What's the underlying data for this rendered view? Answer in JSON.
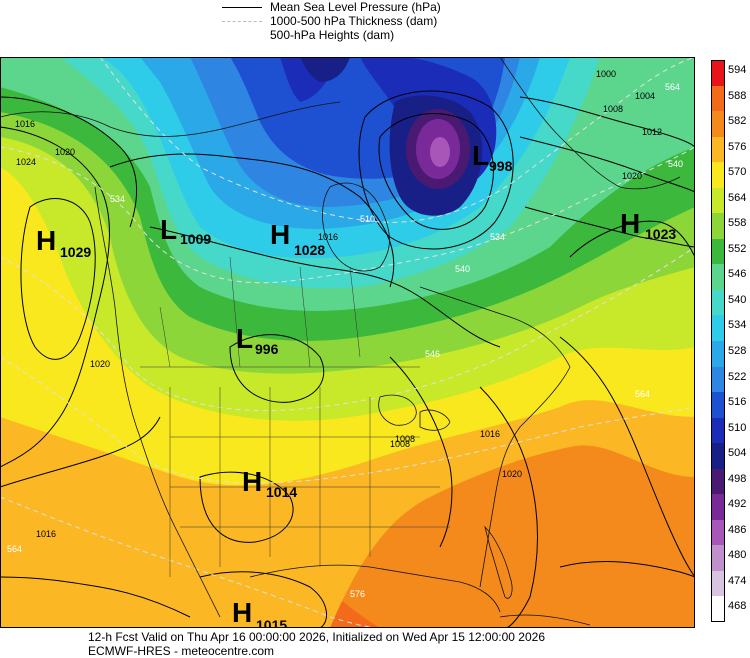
{
  "legend": {
    "mslp": "Mean Sea Level Pressure (hPa)",
    "thickness": "1000-500 hPa Thickness (dam)",
    "heights": "500-hPa Heights (dam)"
  },
  "colorbar": {
    "labels": [
      "594",
      "588",
      "582",
      "576",
      "570",
      "564",
      "558",
      "552",
      "546",
      "540",
      "534",
      "528",
      "522",
      "516",
      "510",
      "504",
      "498",
      "492",
      "486",
      "480",
      "474",
      "468"
    ],
    "colors": [
      "#e8141a",
      "#f26a1a",
      "#f58a1c",
      "#fbb824",
      "#fae81e",
      "#c8e82a",
      "#8cd63a",
      "#3cb83c",
      "#5bd68c",
      "#46d8c8",
      "#2ecce8",
      "#2aa8e8",
      "#2e86e2",
      "#1e50d2",
      "#1a2cb8",
      "#182088",
      "#4a1a72",
      "#7a2a98",
      "#a856b8",
      "#c090cc",
      "#d8c4e0",
      "#ffffff"
    ]
  },
  "pressure_centers": [
    {
      "type": "L",
      "value": "1009"
    },
    {
      "type": "H",
      "value": "1028"
    },
    {
      "type": "L",
      "value": "998"
    },
    {
      "type": "H",
      "value": "1029"
    },
    {
      "type": "H",
      "value": "1023"
    },
    {
      "type": "L",
      "value": "996"
    },
    {
      "type": "H",
      "value": "1014"
    },
    {
      "type": "H",
      "value": "1015"
    }
  ],
  "isobar_labels": [
    "1000",
    "1004",
    "1008",
    "1012",
    "1020",
    "1016",
    "1020",
    "1024",
    "1016",
    "1008",
    "1016",
    "1020",
    "1016",
    "1020",
    "1008"
  ],
  "thickness_labels": [
    "510",
    "534",
    "540",
    "546",
    "564",
    "540",
    "534",
    "564",
    "576",
    "564"
  ],
  "footer": {
    "line1": "12-h Fcst Valid on Thu Apr 16 00:00:00 2026, Initialized on Wed Apr 15 12:00:00 2026",
    "line2": "ECMWF-HRES  - meteocentre.com"
  }
}
